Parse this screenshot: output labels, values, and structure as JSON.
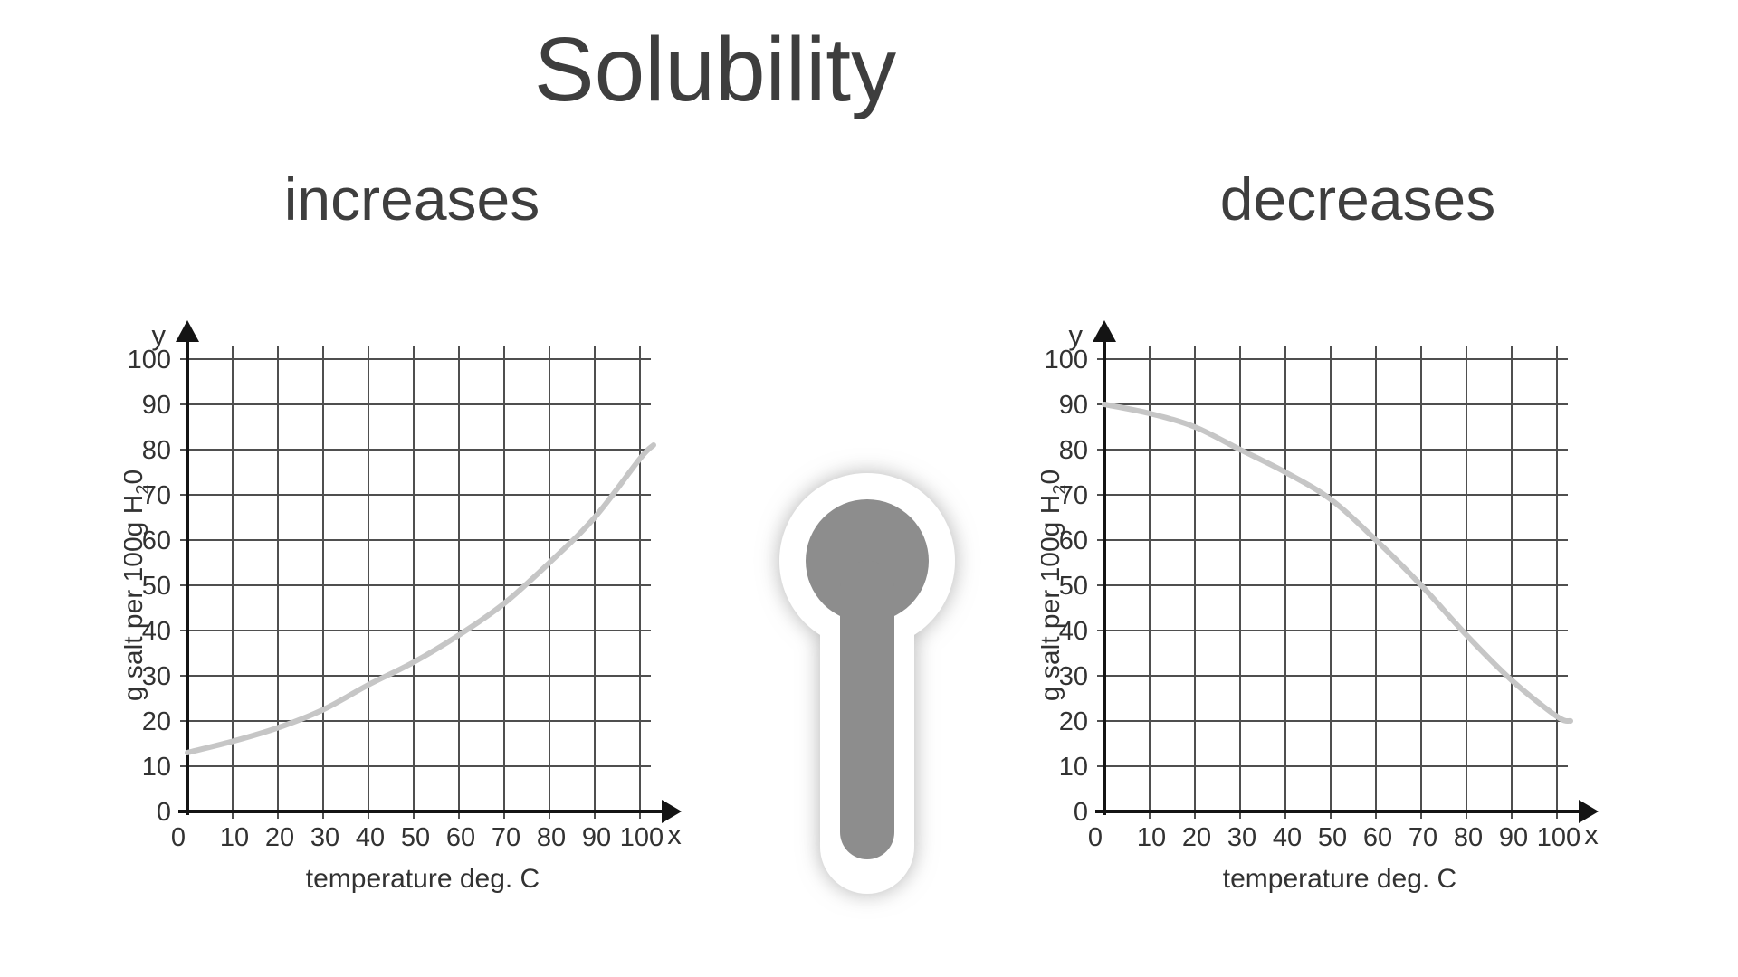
{
  "page": {
    "title": "Solubility",
    "background": "#ffffff",
    "text_color": "#3e3e3e"
  },
  "icons": {
    "thermometer": {
      "label": "thermometer",
      "body_color": "#8d8d8d",
      "outline_color": "#ffffff",
      "glow_color": "#9a9a9a"
    }
  },
  "chart_data": [
    {
      "type": "line",
      "title": "increases",
      "xlabel": "temperature deg. C",
      "ylabel": "g salt per 100g H₂0",
      "ylabel_parts": [
        "g salt per 100g H",
        "2",
        "0"
      ],
      "x_axis_letter": "x",
      "y_axis_letter": "y",
      "x": [
        0,
        10,
        20,
        30,
        40,
        50,
        60,
        70,
        80,
        90,
        100,
        103
      ],
      "values": [
        13,
        15.5,
        18.5,
        22.5,
        28,
        33,
        39,
        46,
        55,
        65,
        78,
        81
      ],
      "xlim": [
        0,
        100
      ],
      "ylim": [
        0,
        100
      ],
      "xticks": [
        0,
        10,
        20,
        30,
        40,
        50,
        60,
        70,
        80,
        90,
        100
      ],
      "yticks": [
        0,
        10,
        20,
        30,
        40,
        50,
        60,
        70,
        80,
        90,
        100
      ],
      "grid": true,
      "legend": false,
      "line_color": "#c6c6c6",
      "grid_color": "#4f4f4f",
      "axis_color": "#141414",
      "label_color": "#323232"
    },
    {
      "type": "line",
      "title": "decreases",
      "xlabel": "temperature deg. C",
      "ylabel": "g salt per 100g H₂0",
      "ylabel_parts": [
        "g salt per 100g H",
        "2",
        "0"
      ],
      "x_axis_letter": "x",
      "y_axis_letter": "y",
      "x": [
        0,
        10,
        20,
        30,
        40,
        50,
        60,
        70,
        80,
        90,
        100,
        103
      ],
      "values": [
        90,
        88,
        85,
        80,
        75,
        69,
        60,
        50,
        39,
        29,
        21,
        20
      ],
      "xlim": [
        0,
        100
      ],
      "ylim": [
        0,
        100
      ],
      "xticks": [
        0,
        10,
        20,
        30,
        40,
        50,
        60,
        70,
        80,
        90,
        100
      ],
      "yticks": [
        0,
        10,
        20,
        30,
        40,
        50,
        60,
        70,
        80,
        90,
        100
      ],
      "grid": true,
      "legend": false,
      "line_color": "#c6c6c6",
      "grid_color": "#4f4f4f",
      "axis_color": "#141414",
      "label_color": "#323232"
    }
  ]
}
